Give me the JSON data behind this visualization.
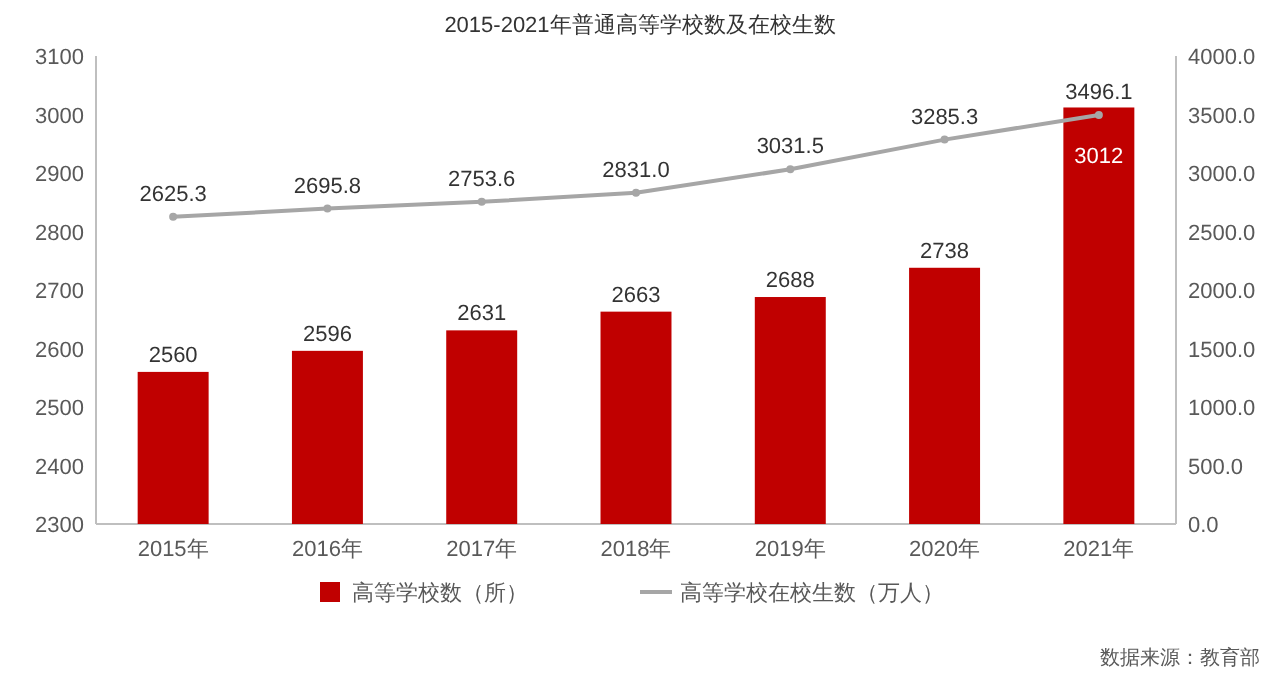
{
  "chart_data": {
    "type": "bar",
    "title": "2015-2021年普通高等学校数及在校生数",
    "categories": [
      "2015年",
      "2016年",
      "2017年",
      "2018年",
      "2019年",
      "2020年",
      "2021年"
    ],
    "series": [
      {
        "name": "高等学校数（所）",
        "color": "#c00000",
        "values": [
          2560,
          2596,
          2631,
          2663,
          2688,
          2738,
          3012
        ]
      },
      {
        "name": "高等学校在校生数（万人）",
        "type": "line",
        "axis": "y2",
        "color": "#a6a6a6",
        "values": [
          2625.3,
          2695.8,
          2753.6,
          2831.0,
          3031.5,
          3285.3,
          3496.1
        ],
        "value_labels": [
          "2625.3",
          "2695.8",
          "2753.6",
          "2831.0",
          "3031.5",
          "3285.3",
          "3496.1"
        ]
      }
    ],
    "ylim": [
      2300,
      3100
    ],
    "yticks": [
      2300,
      2400,
      2500,
      2600,
      2700,
      2800,
      2900,
      3000,
      3100
    ],
    "y2lim": [
      0,
      4000
    ],
    "y2ticks": [
      {
        "value": 0,
        "label": "0.0"
      },
      {
        "value": 500,
        "label": "500.0"
      },
      {
        "value": 1000,
        "label": "1000.0"
      },
      {
        "value": 1500,
        "label": "1500.0"
      },
      {
        "value": 2000,
        "label": "2000.0"
      },
      {
        "value": 2500,
        "label": "2500.0"
      },
      {
        "value": 3000,
        "label": "3000.0"
      },
      {
        "value": 3500,
        "label": "3500.0"
      },
      {
        "value": 4000,
        "label": "4000.0"
      }
    ],
    "data_labels": true,
    "legend": "bottom",
    "marker": "circle",
    "grid": false,
    "annotations": [
      "数据来源：教育部"
    ]
  }
}
